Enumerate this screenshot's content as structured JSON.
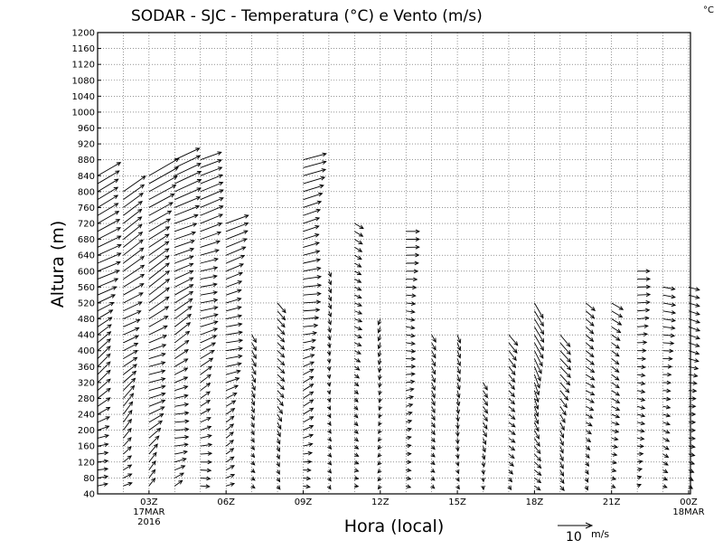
{
  "chart_data": {
    "type": "wind-barb-profile",
    "title": "SODAR - SJC - Temperatura (°C) e Vento (m/s)",
    "corner_unit": "°C",
    "xlabel": "Hora (local)",
    "ylabel": "Altura (m)",
    "ylim": [
      40,
      1200
    ],
    "y_ticks": [
      40,
      80,
      120,
      160,
      200,
      240,
      280,
      320,
      360,
      400,
      440,
      480,
      520,
      560,
      600,
      640,
      680,
      720,
      760,
      800,
      840,
      880,
      920,
      960,
      1000,
      1040,
      1080,
      1120,
      1160,
      1200
    ],
    "xlim_hours": [
      1.0,
      24.0
    ],
    "x_ticks": [
      {
        "hour": 3,
        "label": "03Z",
        "sub1": "17MAR",
        "sub2": "2016"
      },
      {
        "hour": 6,
        "label": "06Z",
        "sub1": "",
        "sub2": ""
      },
      {
        "hour": 9,
        "label": "09Z",
        "sub1": "",
        "sub2": ""
      },
      {
        "hour": 12,
        "label": "12Z",
        "sub1": "",
        "sub2": ""
      },
      {
        "hour": 15,
        "label": "15Z",
        "sub1": "",
        "sub2": ""
      },
      {
        "hour": 18,
        "label": "18Z",
        "sub1": "",
        "sub2": ""
      },
      {
        "hour": 21,
        "label": "21Z",
        "sub1": "",
        "sub2": ""
      },
      {
        "hour": 24,
        "label": "00Z",
        "sub1": "18MAR",
        "sub2": ""
      }
    ],
    "reference_vector": {
      "speed": 10,
      "label": "10",
      "unit": "m/s"
    },
    "grid": true,
    "profiles": [
      {
        "hour": 1.0,
        "top": 840,
        "dir": 240,
        "speed": 9
      },
      {
        "hour": 2.0,
        "top": 800,
        "dir": 235,
        "speed": 9
      },
      {
        "hour": 3.0,
        "top": 840,
        "dir": 240,
        "speed": 10
      },
      {
        "hour": 4.0,
        "top": 880,
        "dir": 245,
        "speed": 9
      },
      {
        "hour": 5.0,
        "top": 880,
        "dir": 250,
        "speed": 8
      },
      {
        "hour": 6.0,
        "top": 720,
        "dir": 250,
        "speed": 7
      },
      {
        "hour": 7.0,
        "top": 440,
        "dir": 330,
        "speed": 3
      },
      {
        "hour": 8.0,
        "top": 520,
        "dir": 320,
        "speed": 4
      },
      {
        "hour": 9.0,
        "top": 880,
        "dir": 255,
        "speed": 7
      },
      {
        "hour": 10.0,
        "top": 600,
        "dir": 340,
        "speed": 2
      },
      {
        "hour": 11.0,
        "top": 720,
        "dir": 300,
        "speed": 3
      },
      {
        "hour": 12.0,
        "top": 480,
        "dir": 20,
        "speed": 2
      },
      {
        "hour": 13.0,
        "top": 700,
        "dir": 270,
        "speed": 4
      },
      {
        "hour": 14.0,
        "top": 440,
        "dir": 330,
        "speed": 3
      },
      {
        "hour": 15.0,
        "top": 440,
        "dir": 340,
        "speed": 3
      },
      {
        "hour": 16.0,
        "top": 320,
        "dir": 330,
        "speed": 3
      },
      {
        "hour": 17.0,
        "top": 440,
        "dir": 320,
        "speed": 4
      },
      {
        "hour": 18.0,
        "top": 520,
        "dir": 330,
        "speed": 6
      },
      {
        "hour": 19.0,
        "top": 440,
        "dir": 320,
        "speed": 5
      },
      {
        "hour": 20.0,
        "top": 520,
        "dir": 310,
        "speed": 4
      },
      {
        "hour": 21.0,
        "top": 520,
        "dir": 300,
        "speed": 4
      },
      {
        "hour": 22.0,
        "top": 600,
        "dir": 270,
        "speed": 4
      },
      {
        "hour": 23.0,
        "top": 560,
        "dir": 280,
        "speed": 4
      },
      {
        "hour": 24.0,
        "top": 560,
        "dir": 285,
        "speed": 4
      }
    ]
  }
}
